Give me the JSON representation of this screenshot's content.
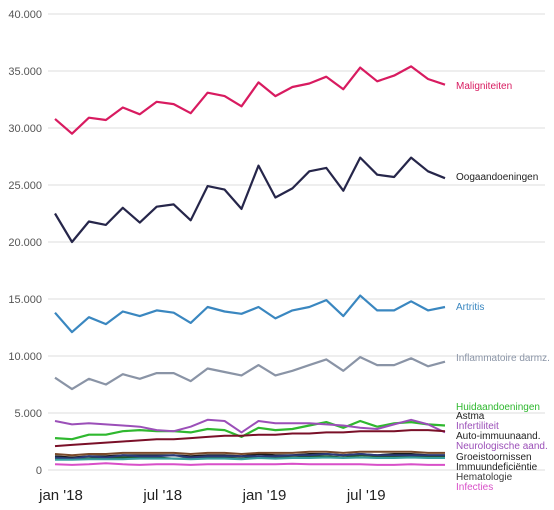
{
  "chart_data": {
    "type": "line",
    "title": "",
    "xlabel": "",
    "ylabel": "",
    "x": [
      "2018-01",
      "2018-02",
      "2018-03",
      "2018-04",
      "2018-05",
      "2018-06",
      "2018-07",
      "2018-08",
      "2018-09",
      "2018-10",
      "2018-11",
      "2018-12",
      "2019-01",
      "2019-02",
      "2019-03",
      "2019-04",
      "2019-05",
      "2019-06",
      "2019-07",
      "2019-08",
      "2019-09",
      "2019-10",
      "2019-11",
      "2019-12"
    ],
    "xticks": [
      {
        "at": "2018-01",
        "label": "jan '18"
      },
      {
        "at": "2018-07",
        "label": "jul '18"
      },
      {
        "at": "2019-01",
        "label": "jan '19"
      },
      {
        "at": "2019-07",
        "label": "jul '19"
      }
    ],
    "yticks": [
      "0",
      "5.000",
      "10.000",
      "15.000",
      "20.000",
      "25.000",
      "30.000",
      "35.000",
      "40.000"
    ],
    "ylim": [
      0,
      40000
    ],
    "grid": true,
    "legend": "direct labels at right end of lines",
    "series": [
      {
        "name": "Maligniteiten",
        "color": "#d81b60",
        "values": [
          30800,
          29500,
          30900,
          30700,
          31800,
          31200,
          32300,
          32100,
          31300,
          33100,
          32800,
          31900,
          34000,
          32800,
          33600,
          33900,
          34500,
          33400,
          35300,
          34100,
          34600,
          35400,
          34300,
          33800
        ]
      },
      {
        "name": "Oogaandoeningen",
        "color": "#26264a",
        "values": [
          22500,
          20000,
          21800,
          21500,
          23000,
          21700,
          23100,
          23300,
          21900,
          24900,
          24600,
          22900,
          26700,
          23900,
          24700,
          26200,
          26500,
          24500,
          27400,
          25900,
          25700,
          27400,
          26200,
          25600
        ]
      },
      {
        "name": "Artritis",
        "color": "#3a87c0",
        "values": [
          13800,
          12100,
          13400,
          12800,
          13900,
          13500,
          14000,
          13800,
          12900,
          14300,
          13900,
          13700,
          14300,
          13300,
          14000,
          14300,
          14900,
          13500,
          15300,
          14000,
          14000,
          14800,
          14000,
          14300
        ]
      },
      {
        "name": "Inflammatoire darmz.",
        "color": "#8a94a6",
        "values": [
          8100,
          7100,
          8000,
          7500,
          8400,
          8000,
          8500,
          8500,
          7800,
          8900,
          8600,
          8300,
          9200,
          8300,
          8700,
          9200,
          9700,
          8700,
          9900,
          9200,
          9200,
          9800,
          9100,
          9500
        ]
      },
      {
        "name": "Huidaandoeningen",
        "color": "#2fb82f",
        "values": [
          2800,
          2700,
          3100,
          3100,
          3400,
          3500,
          3400,
          3400,
          3300,
          3600,
          3500,
          2900,
          3700,
          3500,
          3600,
          3900,
          4200,
          3700,
          4300,
          3800,
          4100,
          4200,
          4000,
          3900
        ]
      },
      {
        "name": "Astma",
        "color": "#1b1b1b",
        "values": [
          1200,
          1100,
          1200,
          1200,
          1300,
          1300,
          1300,
          1300,
          1200,
          1300,
          1300,
          1200,
          1400,
          1300,
          1300,
          1400,
          1400,
          1300,
          1400,
          1300,
          1400,
          1400,
          1300,
          1300
        ]
      },
      {
        "name": "Infertiliteit",
        "color": "#9b4fb8",
        "values": [
          4300,
          4000,
          4100,
          4000,
          3900,
          3800,
          3500,
          3400,
          3800,
          4400,
          4300,
          3300,
          4300,
          4100,
          4100,
          4100,
          4000,
          3900,
          3700,
          3600,
          4000,
          4400,
          4000,
          3300
        ]
      },
      {
        "name": "Auto-immuunaand.",
        "color": "#7a1028",
        "values": [
          2100,
          2200,
          2300,
          2400,
          2500,
          2600,
          2700,
          2700,
          2800,
          2900,
          3000,
          3000,
          3100,
          3100,
          3200,
          3200,
          3300,
          3300,
          3400,
          3400,
          3400,
          3500,
          3500,
          3400
        ]
      },
      {
        "name": "Neurologische aand.",
        "color": "#7a4a2a",
        "values": [
          1400,
          1300,
          1400,
          1400,
          1500,
          1500,
          1500,
          1500,
          1400,
          1500,
          1500,
          1400,
          1500,
          1500,
          1500,
          1600,
          1600,
          1500,
          1600,
          1600,
          1600,
          1600,
          1500,
          1500
        ]
      },
      {
        "name": "Groeistoornissen",
        "color": "#1f5a2a",
        "values": [
          1000,
          1000,
          1000,
          1100,
          1100,
          1100,
          1100,
          1000,
          1000,
          1100,
          1100,
          1000,
          1200,
          1100,
          1100,
          1200,
          1200,
          1100,
          1300,
          1200,
          1200,
          1200,
          1200,
          1200
        ]
      },
      {
        "name": "Immuundeficiëntie",
        "color": "#2a3a7a",
        "values": [
          1100,
          1000,
          1200,
          1100,
          1300,
          1200,
          1200,
          1300,
          1100,
          1200,
          1200,
          1200,
          1200,
          1200,
          1300,
          1300,
          1400,
          1300,
          1400,
          1300,
          1300,
          1300,
          1300,
          1300
        ]
      },
      {
        "name": "Hematologie",
        "color": "#3aa0a0",
        "values": [
          900,
          900,
          950,
          950,
          950,
          1000,
          1000,
          1000,
          950,
          1000,
          1000,
          950,
          1050,
          1000,
          1050,
          1050,
          1100,
          1050,
          1100,
          1050,
          1050,
          1100,
          1050,
          1050
        ]
      },
      {
        "name": "Infecties",
        "color": "#d84fc8",
        "values": [
          500,
          450,
          500,
          600,
          500,
          450,
          500,
          500,
          450,
          500,
          500,
          500,
          500,
          500,
          550,
          500,
          500,
          500,
          500,
          450,
          450,
          500,
          450,
          450
        ]
      }
    ],
    "label_colors": {
      "Maligniteiten": "#d81b60",
      "Oogaandoeningen": "#222222",
      "Artritis": "#3a87c0",
      "Inflammatoire darmz.": "#8a94a6",
      "Huidaandoeningen": "#2fb82f",
      "Astma": "#222222",
      "Infertiliteit": "#9b4fb8",
      "Auto-immuunaand.": "#222222",
      "Neurologische aand.": "#9b4fb8",
      "Groeistoornissen": "#222222",
      "Immuundeficiëntie": "#222222",
      "Hematologie": "#3a3a3a",
      "Infecties": "#d84fc8"
    }
  }
}
